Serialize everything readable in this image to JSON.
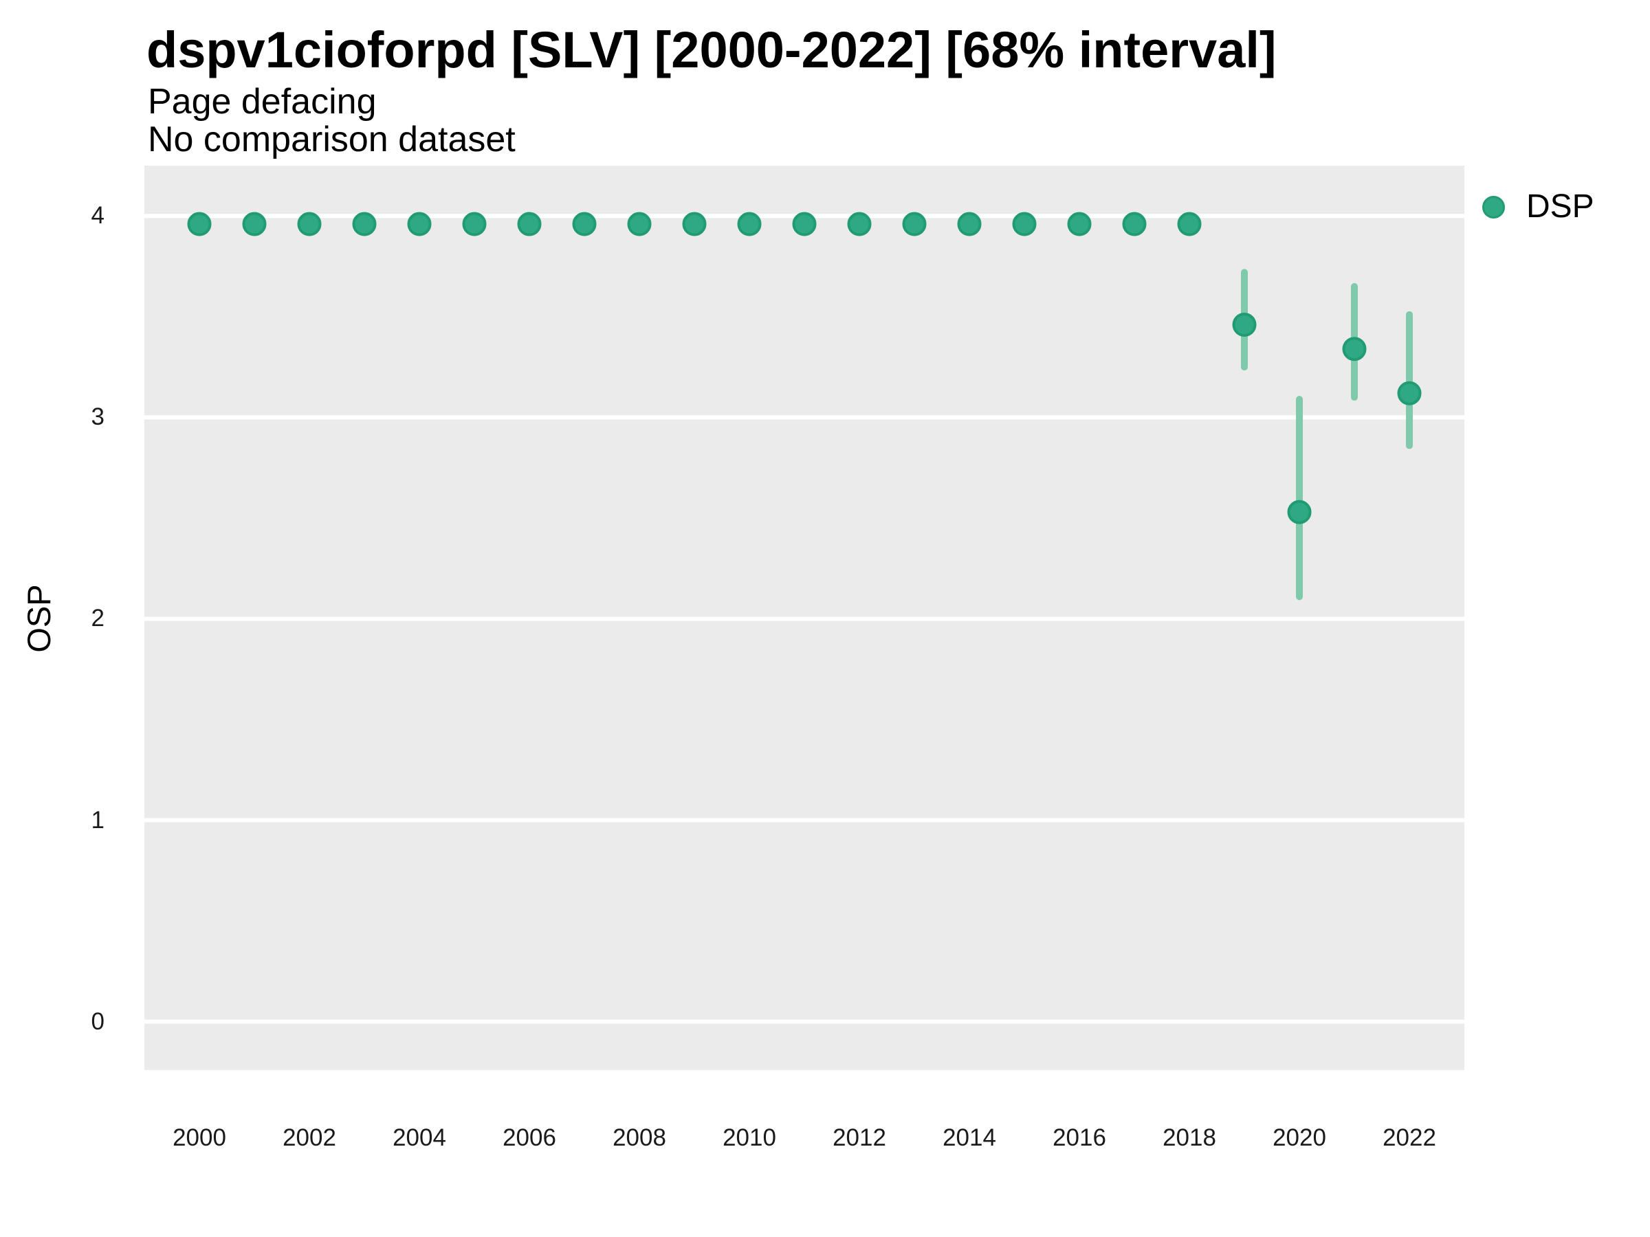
{
  "header": {
    "title": "dspv1cioforpd [SLV] [2000-2022] [68% interval]",
    "subtitle": "Page defacing",
    "note": "No comparison dataset"
  },
  "legend": {
    "position": "right",
    "items": [
      {
        "label": "DSP",
        "color": "#2FA983"
      }
    ]
  },
  "colors": {
    "point_fill": "#2FA983",
    "point_stroke": "#219C72",
    "interval_line": "#7ECAAB",
    "panel_background": "#EBEBEB",
    "gridline": "#FFFFFF",
    "tick_text": "#1A1A1A",
    "title_text": "#000000"
  },
  "chart_data": {
    "type": "scatter",
    "title": "dspv1cioforpd [SLV] [2000-2022] [68% interval]",
    "subtitle": "Page defacing",
    "note": "No comparison dataset",
    "xlabel": "",
    "ylabel": "OSP",
    "legend_position": "right",
    "grid": "horizontal-major-only",
    "xlim": [
      1999,
      2023
    ],
    "ylim": [
      -0.24,
      4.25
    ],
    "x_ticks": [
      2000,
      2002,
      2004,
      2006,
      2008,
      2010,
      2012,
      2014,
      2016,
      2018,
      2020,
      2022
    ],
    "y_ticks": [
      0,
      1,
      2,
      3,
      4
    ],
    "interval_label": "68% interval",
    "series": [
      {
        "name": "DSP",
        "points": [
          {
            "x": 2000,
            "y": 3.96
          },
          {
            "x": 2001,
            "y": 3.96
          },
          {
            "x": 2002,
            "y": 3.96
          },
          {
            "x": 2003,
            "y": 3.96
          },
          {
            "x": 2004,
            "y": 3.96
          },
          {
            "x": 2005,
            "y": 3.96
          },
          {
            "x": 2006,
            "y": 3.96
          },
          {
            "x": 2007,
            "y": 3.96
          },
          {
            "x": 2008,
            "y": 3.96
          },
          {
            "x": 2009,
            "y": 3.96
          },
          {
            "x": 2010,
            "y": 3.96
          },
          {
            "x": 2011,
            "y": 3.96
          },
          {
            "x": 2012,
            "y": 3.96
          },
          {
            "x": 2013,
            "y": 3.96
          },
          {
            "x": 2014,
            "y": 3.96
          },
          {
            "x": 2015,
            "y": 3.96
          },
          {
            "x": 2016,
            "y": 3.96
          },
          {
            "x": 2017,
            "y": 3.96
          },
          {
            "x": 2018,
            "y": 3.96
          },
          {
            "x": 2019,
            "y": 3.46,
            "lo": 3.25,
            "hi": 3.72
          },
          {
            "x": 2020,
            "y": 2.53,
            "lo": 2.11,
            "hi": 3.09
          },
          {
            "x": 2021,
            "y": 3.34,
            "lo": 3.1,
            "hi": 3.65
          },
          {
            "x": 2022,
            "y": 3.12,
            "lo": 2.86,
            "hi": 3.51
          }
        ]
      }
    ]
  }
}
